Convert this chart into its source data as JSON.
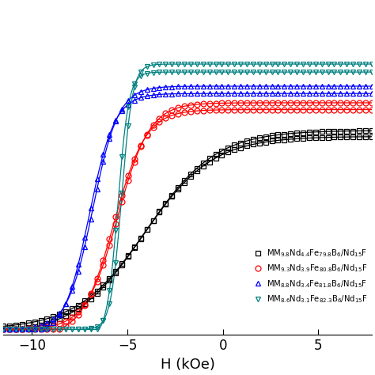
{
  "xlabel": "H (kOe)",
  "xlim": [
    -11.5,
    7.8
  ],
  "ylim": [
    -0.02,
    1.18
  ],
  "series": [
    {
      "label": "MM$_{9.8}$Nd$_{4.4}$Fe$_{79.8}$B$_6$/Nd$_{15}$F",
      "color": "black",
      "marker": "s",
      "hc_upper": -4.0,
      "hc_lower": -4.2,
      "ms": 0.72,
      "k_upper": 0.55,
      "k_lower": 0.55
    },
    {
      "label": "MM$_{9.3}$Nd$_{3.9}$Fe$_{80.8}$B$_6$/Nd$_{15}$F",
      "color": "red",
      "marker": "o",
      "hc_upper": -5.5,
      "hc_lower": -5.7,
      "ms": 0.82,
      "k_upper": 1.2,
      "k_lower": 1.2
    },
    {
      "label": "MM$_{8.8}$Nd$_{3.4}$Fe$_{81.8}$B$_6$/Nd$_{15}$F",
      "color": "blue",
      "marker": "^",
      "hc_upper": -6.8,
      "hc_lower": -7.0,
      "ms": 0.88,
      "k_upper": 1.5,
      "k_lower": 1.5
    },
    {
      "label": "MM$_{8.6}$Nd$_{3.1}$Fe$_{82.3}$B$_6$/Nd$_{15}$F",
      "color": "teal",
      "marker": "v",
      "hc_upper": -5.3,
      "hc_lower": -5.5,
      "ms": 0.96,
      "k_upper": 3.5,
      "k_lower": 3.5
    }
  ],
  "xticks": [
    -10,
    -5,
    0,
    5
  ],
  "background_color": "white",
  "marker_count": 60,
  "markersize": 5,
  "linewidth": 0.9,
  "markeredgewidth": 0.9
}
